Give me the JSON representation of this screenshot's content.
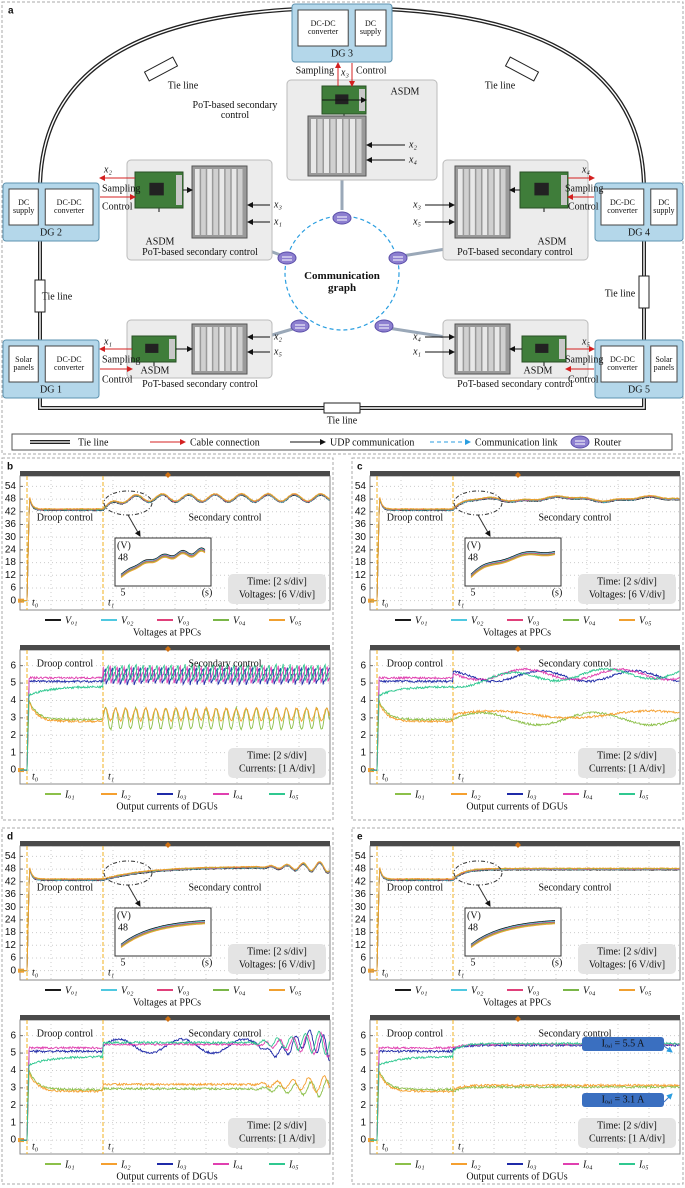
{
  "panel_a": {
    "label": "a",
    "dgs": [
      {
        "name": "DG 3",
        "blocks": [
          "DC-DC converter",
          "DC supply"
        ]
      },
      {
        "name": "DG 2",
        "blocks": [
          "DC supply",
          "DC-DC converter"
        ]
      },
      {
        "name": "DG 4",
        "blocks": [
          "DC-DC converter",
          "DC supply"
        ]
      },
      {
        "name": "DG 1",
        "blocks": [
          "Solar panels",
          "DC-DC converter"
        ]
      },
      {
        "name": "DG 5",
        "blocks": [
          "DC-DC converter",
          "Solar panels"
        ]
      }
    ],
    "controllers": [
      {
        "title": "PoT-based secondary control",
        "asdm": "ASDM",
        "sent": "x₃",
        "inputs": [
          "x₂",
          "x₄"
        ],
        "sampling": "Sampling",
        "control": "Control"
      },
      {
        "title": "PoT-based secondary control",
        "asdm": "ASDM",
        "sent": "x₂",
        "inputs": [
          "x₃",
          "x₁"
        ],
        "sampling": "Sampling",
        "control": "Control"
      },
      {
        "title": "PoT-based secondary control",
        "asdm": "ASDM",
        "sent": "x₄",
        "inputs": [
          "x₃",
          "x₅"
        ],
        "sampling": "Sampling",
        "control": "Control"
      },
      {
        "title": "PoT-based secondary control",
        "asdm": "ASDM",
        "sent": "x₁",
        "inputs": [
          "x₂",
          "x₅"
        ],
        "sampling": "Sampling",
        "control": "Control"
      },
      {
        "title": "PoT-based secondary control",
        "asdm": "ASDM",
        "sent": "x₅",
        "inputs": [
          "x₄",
          "x₁"
        ],
        "sampling": "Sampling",
        "control": "Control"
      }
    ],
    "tie_lines": [
      "Tie line",
      "Tie line",
      "Tie line",
      "Tie line",
      "Tie line"
    ],
    "graph_title": "Communication graph",
    "legend": [
      "Tie line",
      "Cable connection",
      "UDP communication",
      "Communication link",
      "Router"
    ]
  },
  "panels": [
    {
      "label": "b",
      "voltage": {
        "yticks": [
          0,
          6,
          12,
          18,
          24,
          30,
          36,
          42,
          48,
          54
        ],
        "ylim": [
          -4.4,
          58.9
        ],
        "phases": [
          "Droop control",
          "Secondary control"
        ],
        "markers": [
          "t₀",
          "t₁"
        ],
        "time": "Time: [2 s/div]",
        "scale": "Voltages: [6 V/div]",
        "inset": {
          "y_unit": "(V)",
          "y_tick": 48,
          "x_tick": 5,
          "x_unit": "(s)"
        },
        "legend": [
          {
            "name": "Vₒ₁",
            "color": "#1a1a1a"
          },
          {
            "name": "Vₒ₂",
            "color": "#4fc8e0"
          },
          {
            "name": "Vₒ₃",
            "color": "#e0407a"
          },
          {
            "name": "Vₒ₄",
            "color": "#7ab648"
          },
          {
            "name": "Vₒ₅",
            "color": "#f0a030"
          }
        ],
        "caption": "Voltages at PPCs"
      },
      "current": {
        "yticks": [
          0,
          1,
          2,
          3,
          4,
          5,
          6
        ],
        "ylim": [
          -0.8,
          6.9
        ],
        "phases": [
          "Droop control",
          "Secondary control"
        ],
        "markers": [
          "t₀",
          "t₁"
        ],
        "time": "Time: [2 s/div]",
        "scale": "Currents: [1 A/div]",
        "legend": [
          {
            "name": "Iₒ₁",
            "color": "#8cc04a"
          },
          {
            "name": "Iₒ₂",
            "color": "#f5a030"
          },
          {
            "name": "Iₒ₃",
            "color": "#1f2aa8"
          },
          {
            "name": "Iₒ₄",
            "color": "#e040b0"
          },
          {
            "name": "Iₒ₅",
            "color": "#30c890"
          }
        ],
        "caption": "Output currents of DGUs"
      }
    },
    {
      "label": "c",
      "voltage": {
        "yticks": [
          0,
          6,
          12,
          18,
          24,
          30,
          36,
          42,
          48,
          54
        ],
        "ylim": [
          -4.4,
          58.9
        ],
        "phases": [
          "Droop control",
          "Secondary control"
        ],
        "markers": [
          "t₀",
          "t₁"
        ],
        "time": "Time: [2 s/div]",
        "scale": "Voltages: [6 V/div]",
        "inset": {
          "y_unit": "(V)",
          "y_tick": 48,
          "x_tick": 5,
          "x_unit": "(s)"
        },
        "legend": [
          {
            "name": "Vₒ₁",
            "color": "#1a1a1a"
          },
          {
            "name": "Vₒ₂",
            "color": "#4fc8e0"
          },
          {
            "name": "Vₒ₃",
            "color": "#e0407a"
          },
          {
            "name": "Vₒ₄",
            "color": "#7ab648"
          },
          {
            "name": "Vₒ₅",
            "color": "#f0a030"
          }
        ],
        "caption": "Voltages at PPCs"
      },
      "current": {
        "yticks": [
          0,
          1,
          2,
          3,
          4,
          5,
          6
        ],
        "ylim": [
          -0.8,
          6.9
        ],
        "phases": [
          "Droop control",
          "Secondary control"
        ],
        "markers": [
          "t₀",
          "t₁"
        ],
        "time": "Time: [2 s/div]",
        "scale": "Currents: [1 A/div]",
        "legend": [
          {
            "name": "Iₒ₁",
            "color": "#8cc04a"
          },
          {
            "name": "Iₒ₂",
            "color": "#f5a030"
          },
          {
            "name": "Iₒ₃",
            "color": "#1f2aa8"
          },
          {
            "name": "Iₒ₄",
            "color": "#e040b0"
          },
          {
            "name": "Iₒ₅",
            "color": "#30c890"
          }
        ],
        "caption": "Output currents of DGUs"
      }
    },
    {
      "label": "d",
      "voltage": {
        "yticks": [
          0,
          6,
          12,
          18,
          24,
          30,
          36,
          42,
          48,
          54
        ],
        "ylim": [
          -4.4,
          58.9
        ],
        "phases": [
          "Droop control",
          "Secondary control"
        ],
        "markers": [
          "t₀",
          "t₁"
        ],
        "time": "Time: [2 s/div]",
        "scale": "Voltages: [6 V/div]",
        "inset": {
          "y_unit": "(V)",
          "y_tick": 48,
          "x_tick": 5,
          "x_unit": "(s)"
        },
        "legend": [
          {
            "name": "Vₒ₁",
            "color": "#1a1a1a"
          },
          {
            "name": "Vₒ₂",
            "color": "#4fc8e0"
          },
          {
            "name": "Vₒ₃",
            "color": "#e0407a"
          },
          {
            "name": "Vₒ₄",
            "color": "#7ab648"
          },
          {
            "name": "Vₒ₅",
            "color": "#f0a030"
          }
        ],
        "caption": "Voltages at PPCs"
      },
      "current": {
        "yticks": [
          0,
          1,
          2,
          3,
          4,
          5,
          6
        ],
        "ylim": [
          -0.8,
          6.9
        ],
        "phases": [
          "Droop control",
          "Secondary control"
        ],
        "markers": [
          "t₀",
          "t₁"
        ],
        "time": "Time: [2 s/div]",
        "scale": "Currents: [1 A/div]",
        "legend": [
          {
            "name": "Iₒ₁",
            "color": "#8cc04a"
          },
          {
            "name": "Iₒ₂",
            "color": "#f5a030"
          },
          {
            "name": "Iₒ₃",
            "color": "#1f2aa8"
          },
          {
            "name": "Iₒ₄",
            "color": "#e040b0"
          },
          {
            "name": "Iₒ₅",
            "color": "#30c890"
          }
        ],
        "caption": "Output currents of DGUs"
      }
    },
    {
      "label": "e",
      "voltage": {
        "yticks": [
          0,
          6,
          12,
          18,
          24,
          30,
          36,
          42,
          48,
          54
        ],
        "ylim": [
          -4.4,
          58.9
        ],
        "phases": [
          "Droop control",
          "Secondary control"
        ],
        "markers": [
          "t₀",
          "t₁"
        ],
        "time": "Time: [2 s/div]",
        "scale": "Voltages: [6 V/div]",
        "inset": {
          "y_unit": "(V)",
          "y_tick": 48,
          "x_tick": 5,
          "x_unit": "(s)"
        },
        "legend": [
          {
            "name": "Vₒ₁",
            "color": "#1a1a1a"
          },
          {
            "name": "Vₒ₂",
            "color": "#4fc8e0"
          },
          {
            "name": "Vₒ₃",
            "color": "#e0407a"
          },
          {
            "name": "Vₒ₄",
            "color": "#7ab648"
          },
          {
            "name": "Vₒ₅",
            "color": "#f0a030"
          }
        ],
        "caption": "Voltages at PPCs"
      },
      "current": {
        "yticks": [
          0,
          1,
          2,
          3,
          4,
          5,
          6
        ],
        "ylim": [
          -0.8,
          6.9
        ],
        "phases": [
          "Droop control",
          "Secondary control"
        ],
        "markers": [
          "t₀",
          "t₁"
        ],
        "time": "Time: [2 s/div]",
        "scale": "Currents: [1 A/div]",
        "legend": [
          {
            "name": "Iₒ₁",
            "color": "#8cc04a"
          },
          {
            "name": "Iₒ₂",
            "color": "#f5a030"
          },
          {
            "name": "Iₒ₃",
            "color": "#1f2aa8"
          },
          {
            "name": "Iₒ₄",
            "color": "#e040b0"
          },
          {
            "name": "Iₒ₅",
            "color": "#30c890"
          }
        ],
        "annotations": [
          "Iₒ,ᵢ = 5.5 A",
          "Iₒ,ᵢ = 3.1 A"
        ],
        "caption": "Output currents of DGUs"
      }
    }
  ]
}
